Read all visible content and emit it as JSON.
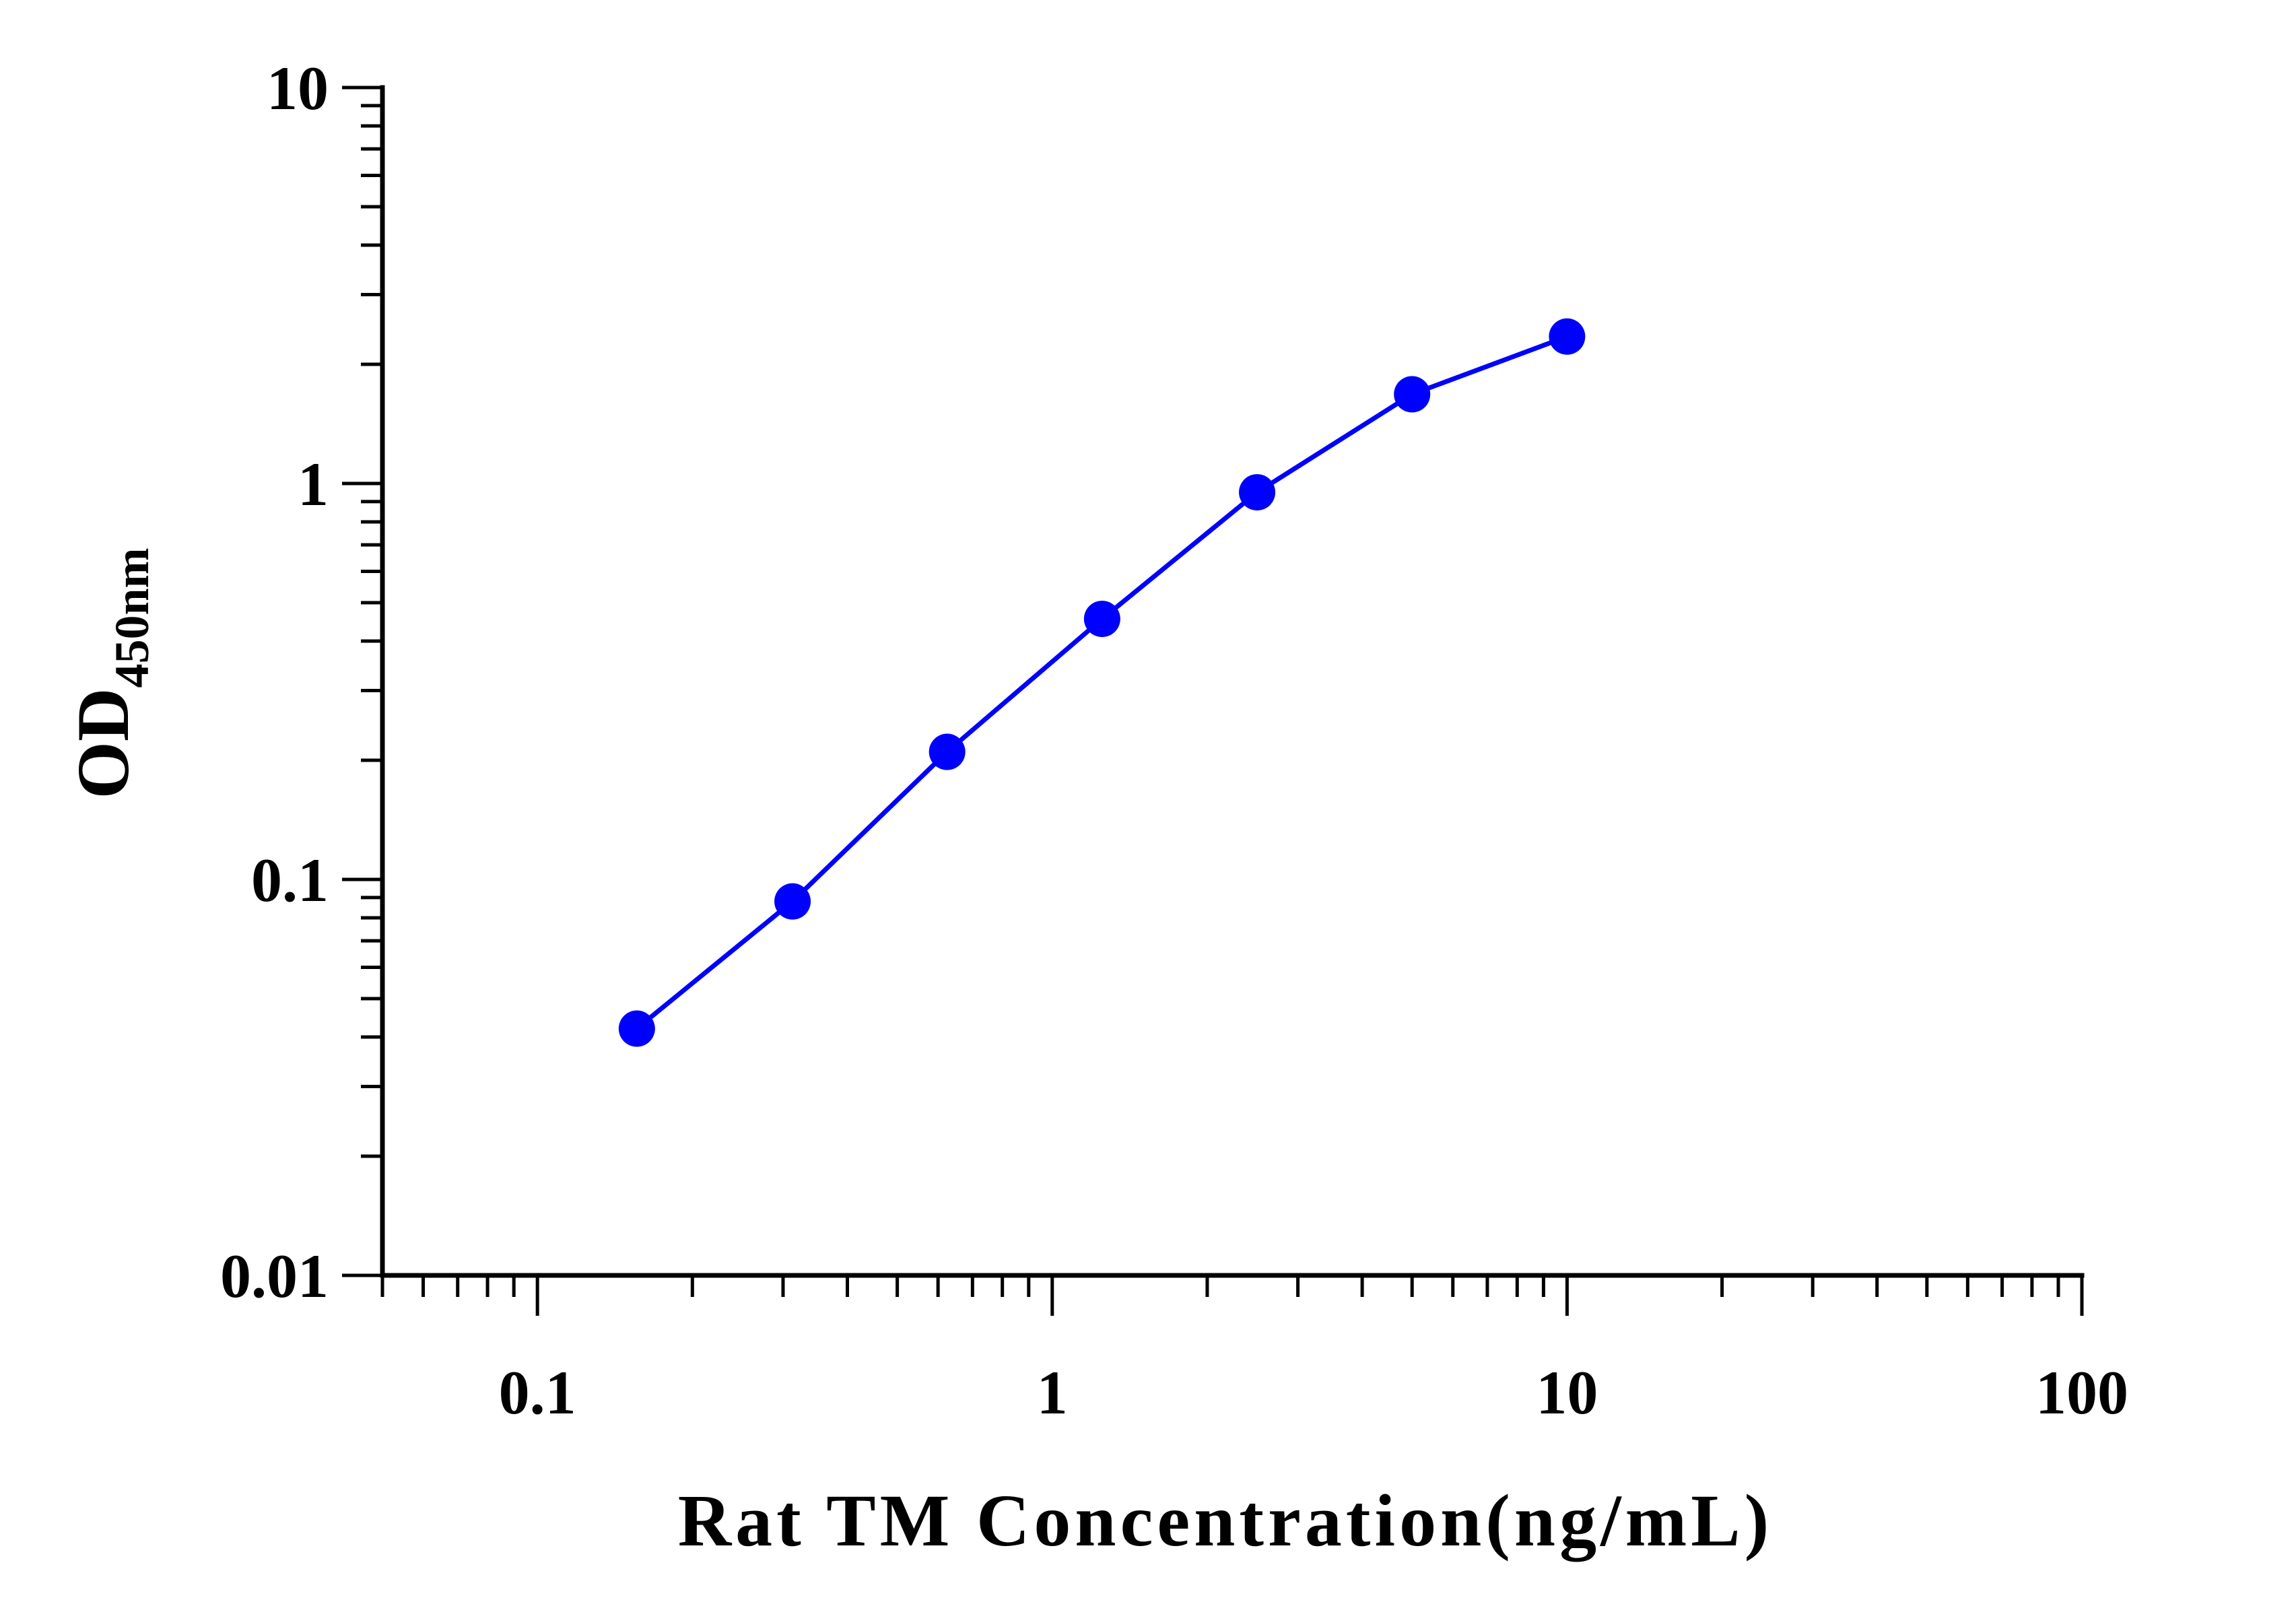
{
  "chart_data": {
    "type": "line",
    "xlabel": "Rat TM Concentration(ng/mL)",
    "ylabel": {
      "main": "OD",
      "sub": "450nm"
    },
    "x_scale": "log",
    "y_scale": "log",
    "xlim": [
      0.05,
      100
    ],
    "ylim": [
      0.01,
      10
    ],
    "x_ticks": [
      "0.1",
      "1",
      "10",
      "100"
    ],
    "y_ticks": [
      "0.01",
      "0.1",
      "1",
      "10"
    ],
    "grid": false,
    "legend": "none",
    "series": [
      {
        "color": "#0000ff",
        "marker": "circle",
        "x": [
          0.156,
          0.313,
          0.625,
          1.25,
          2.5,
          5,
          10
        ],
        "y": [
          0.042,
          0.088,
          0.21,
          0.455,
          0.95,
          1.68,
          2.35
        ]
      }
    ]
  }
}
